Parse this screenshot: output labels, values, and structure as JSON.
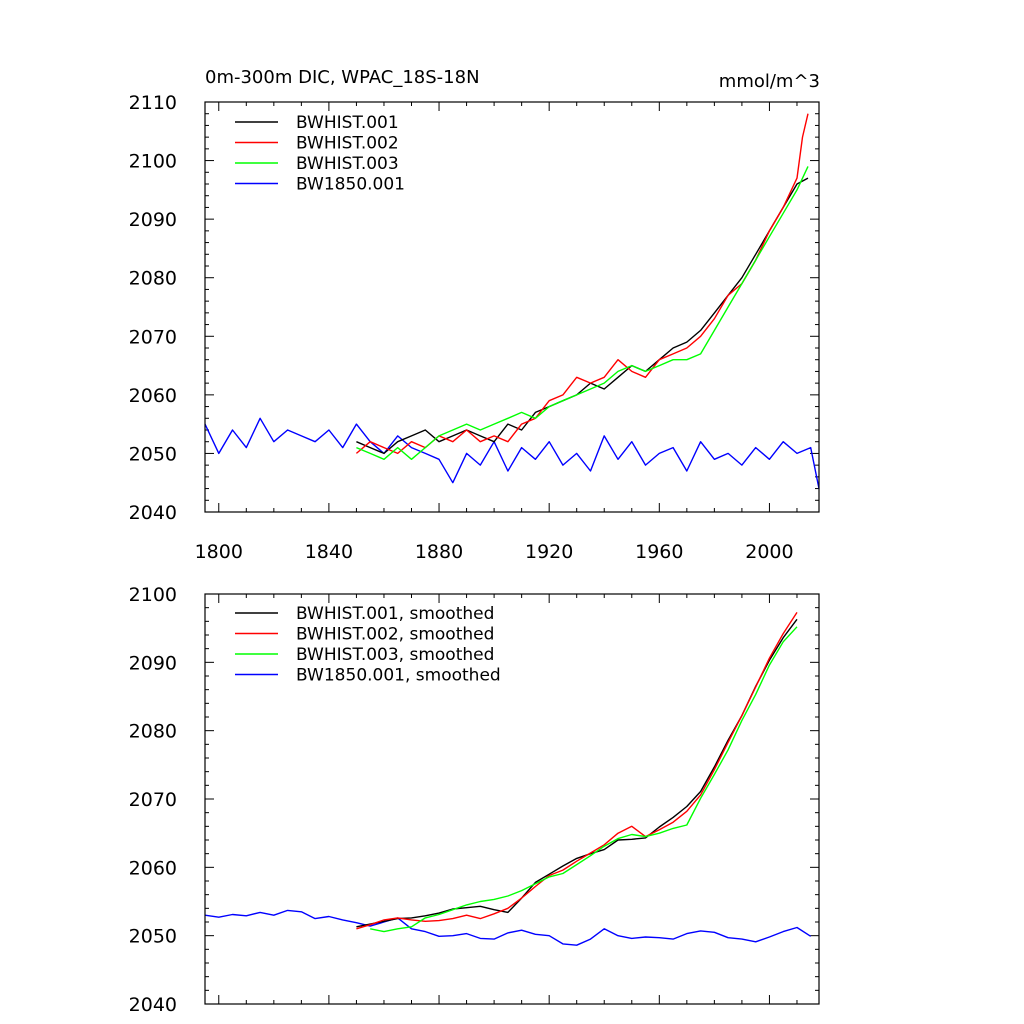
{
  "chart_data": [
    {
      "type": "line",
      "title": "0m-300m DIC, WPAC_18S-18N",
      "units": "mmol/m^3",
      "xlim": [
        1795,
        2018
      ],
      "ylim": [
        2040,
        2110
      ],
      "x_ticks": [
        "1800",
        "1840",
        "1880",
        "1920",
        "1960",
        "2000"
      ],
      "y_ticks": [
        "2040",
        "2050",
        "2060",
        "2070",
        "2080",
        "2090",
        "2100",
        "2110"
      ],
      "legend_position": "top-left",
      "series": [
        {
          "name": "BWHIST.001",
          "color": "#000000",
          "x": [
            1850,
            1855,
            1860,
            1865,
            1870,
            1875,
            1880,
            1885,
            1890,
            1895,
            1900,
            1905,
            1910,
            1915,
            1920,
            1925,
            1930,
            1935,
            1940,
            1945,
            1950,
            1955,
            1960,
            1965,
            1970,
            1975,
            1980,
            1985,
            1990,
            1995,
            2000,
            2005,
            2010,
            2014
          ],
          "y": [
            2052,
            2051,
            2050,
            2052,
            2053,
            2054,
            2052,
            2053,
            2054,
            2053,
            2052,
            2055,
            2054,
            2057,
            2058,
            2059,
            2060,
            2062,
            2061,
            2063,
            2065,
            2064,
            2066,
            2068,
            2069,
            2071,
            2074,
            2077,
            2080,
            2084,
            2088,
            2092,
            2096,
            2097
          ]
        },
        {
          "name": "BWHIST.002",
          "color": "#ff0000",
          "x": [
            1850,
            1855,
            1860,
            1865,
            1870,
            1875,
            1880,
            1885,
            1890,
            1895,
            1900,
            1905,
            1910,
            1915,
            1920,
            1925,
            1930,
            1935,
            1940,
            1945,
            1950,
            1955,
            1960,
            1965,
            1970,
            1975,
            1980,
            1985,
            1990,
            1995,
            2000,
            2005,
            2010,
            2012,
            2014
          ],
          "y": [
            2050,
            2052,
            2051,
            2050,
            2052,
            2051,
            2053,
            2052,
            2054,
            2052,
            2053,
            2052,
            2055,
            2056,
            2059,
            2060,
            2063,
            2062,
            2063,
            2066,
            2064,
            2063,
            2066,
            2067,
            2068,
            2070,
            2073,
            2077,
            2079,
            2083,
            2088,
            2092,
            2097,
            2104,
            2108
          ]
        },
        {
          "name": "BWHIST.003",
          "color": "#00ff00",
          "x": [
            1850,
            1855,
            1860,
            1865,
            1870,
            1875,
            1880,
            1885,
            1890,
            1895,
            1900,
            1905,
            1910,
            1915,
            1920,
            1925,
            1930,
            1935,
            1940,
            1945,
            1950,
            1955,
            1960,
            1965,
            1970,
            1975,
            1980,
            1985,
            1990,
            1995,
            2000,
            2005,
            2010,
            2014
          ],
          "y": [
            2051,
            2050,
            2049,
            2051,
            2049,
            2051,
            2053,
            2054,
            2055,
            2054,
            2055,
            2056,
            2057,
            2056,
            2058,
            2059,
            2060,
            2061,
            2062,
            2064,
            2065,
            2064,
            2065,
            2066,
            2066,
            2067,
            2071,
            2075,
            2079,
            2083,
            2087,
            2091,
            2095,
            2099
          ]
        },
        {
          "name": "BW1850.001",
          "color": "#0000ff",
          "x": [
            1795,
            1800,
            1805,
            1810,
            1815,
            1820,
            1825,
            1830,
            1835,
            1840,
            1845,
            1850,
            1855,
            1860,
            1865,
            1870,
            1875,
            1880,
            1885,
            1890,
            1895,
            1900,
            1905,
            1910,
            1915,
            1920,
            1925,
            1930,
            1935,
            1940,
            1945,
            1950,
            1955,
            1960,
            1965,
            1970,
            1975,
            1980,
            1985,
            1990,
            1995,
            2000,
            2005,
            2010,
            2015,
            2018
          ],
          "y": [
            2055,
            2050,
            2054,
            2051,
            2056,
            2052,
            2054,
            2053,
            2052,
            2054,
            2051,
            2055,
            2052,
            2050,
            2053,
            2051,
            2050,
            2049,
            2045,
            2050,
            2048,
            2052,
            2047,
            2051,
            2049,
            2052,
            2048,
            2050,
            2047,
            2053,
            2049,
            2052,
            2048,
            2050,
            2051,
            2047,
            2052,
            2049,
            2050,
            2048,
            2051,
            2049,
            2052,
            2050,
            2051,
            2044
          ]
        }
      ]
    },
    {
      "type": "line",
      "title": "",
      "xlim": [
        1795,
        2018
      ],
      "ylim": [
        2040,
        2100
      ],
      "x_ticks": [
        "1800",
        "1840",
        "1880",
        "1920",
        "1960",
        "2000"
      ],
      "y_ticks": [
        "2040",
        "2050",
        "2060",
        "2070",
        "2080",
        "2090",
        "2100"
      ],
      "legend_position": "top-left",
      "series": [
        {
          "name": "BWHIST.001, smoothed",
          "color": "#000000",
          "x": [
            1850,
            1855,
            1860,
            1865,
            1870,
            1875,
            1880,
            1885,
            1890,
            1895,
            1900,
            1905,
            1910,
            1915,
            1920,
            1925,
            1930,
            1935,
            1940,
            1945,
            1950,
            1955,
            1960,
            1965,
            1970,
            1975,
            1980,
            1985,
            1990,
            1995,
            2000,
            2005,
            2010
          ],
          "y": [
            2051.3,
            2051.7,
            2052.1,
            2052.5,
            2052.6,
            2052.9,
            2053.3,
            2053.9,
            2054.1,
            2054.3,
            2053.8,
            2053.4,
            2055.5,
            2057.8,
            2059.0,
            2060.2,
            2061.3,
            2062.0,
            2062.6,
            2064.0,
            2064.1,
            2064.3,
            2065.9,
            2067.3,
            2068.9,
            2071.1,
            2074.7,
            2078.6,
            2082.2,
            2086.5,
            2090.3,
            2093.6,
            2096.3
          ]
        },
        {
          "name": "BWHIST.002, smoothed",
          "color": "#ff0000",
          "x": [
            1850,
            1855,
            1860,
            1865,
            1870,
            1875,
            1880,
            1885,
            1890,
            1895,
            1900,
            1905,
            1910,
            1915,
            1920,
            1925,
            1930,
            1935,
            1940,
            1945,
            1950,
            1955,
            1960,
            1965,
            1970,
            1975,
            1980,
            1985,
            1990,
            1995,
            2000,
            2005,
            2010
          ],
          "y": [
            2051.0,
            2051.6,
            2052.3,
            2052.6,
            2052.3,
            2052.1,
            2052.2,
            2052.5,
            2053.0,
            2052.5,
            2053.2,
            2054.0,
            2055.5,
            2057.2,
            2058.8,
            2059.6,
            2060.9,
            2062.1,
            2063.3,
            2065.0,
            2066.0,
            2064.5,
            2065.5,
            2066.6,
            2068.2,
            2070.6,
            2074.3,
            2078.3,
            2082.2,
            2086.4,
            2090.6,
            2094.2,
            2097.3
          ]
        },
        {
          "name": "BWHIST.003, smoothed",
          "color": "#00ff00",
          "x": [
            1855,
            1860,
            1865,
            1870,
            1875,
            1880,
            1885,
            1890,
            1895,
            1900,
            1905,
            1910,
            1915,
            1920,
            1925,
            1930,
            1935,
            1940,
            1945,
            1950,
            1955,
            1960,
            1965,
            1970,
            1975,
            1980,
            1985,
            1990,
            1995,
            2000,
            2005,
            2010
          ],
          "y": [
            2051.0,
            2050.6,
            2051.0,
            2051.3,
            2052.6,
            2053.1,
            2053.8,
            2054.5,
            2055.0,
            2055.3,
            2055.8,
            2056.6,
            2057.6,
            2058.6,
            2059.1,
            2060.4,
            2061.7,
            2063.1,
            2064.2,
            2064.8,
            2064.5,
            2065.0,
            2065.7,
            2066.2,
            2070.1,
            2073.6,
            2077.2,
            2081.5,
            2085.3,
            2089.6,
            2093.0,
            2095.2
          ]
        },
        {
          "name": "BW1850.001, smoothed",
          "color": "#0000ff",
          "x": [
            1795,
            1800,
            1805,
            1810,
            1815,
            1820,
            1825,
            1830,
            1835,
            1840,
            1845,
            1850,
            1855,
            1860,
            1865,
            1870,
            1875,
            1880,
            1885,
            1890,
            1895,
            1900,
            1905,
            1910,
            1915,
            1920,
            1925,
            1930,
            1935,
            1940,
            1945,
            1950,
            1955,
            1960,
            1965,
            1970,
            1975,
            1980,
            1985,
            1990,
            1995,
            2000,
            2005,
            2010,
            2015
          ],
          "y": [
            2053.0,
            2052.7,
            2053.1,
            2052.9,
            2053.4,
            2053.0,
            2053.7,
            2053.5,
            2052.5,
            2052.8,
            2052.3,
            2051.9,
            2051.4,
            2052.0,
            2052.6,
            2051.0,
            2050.6,
            2049.9,
            2050.0,
            2050.3,
            2049.6,
            2049.5,
            2050.4,
            2050.8,
            2050.2,
            2050.0,
            2048.8,
            2048.6,
            2049.5,
            2051.0,
            2050.0,
            2049.6,
            2049.8,
            2049.7,
            2049.5,
            2050.3,
            2050.7,
            2050.5,
            2049.7,
            2049.5,
            2049.1,
            2049.8,
            2050.6,
            2051.2,
            2049.9
          ]
        }
      ]
    }
  ]
}
